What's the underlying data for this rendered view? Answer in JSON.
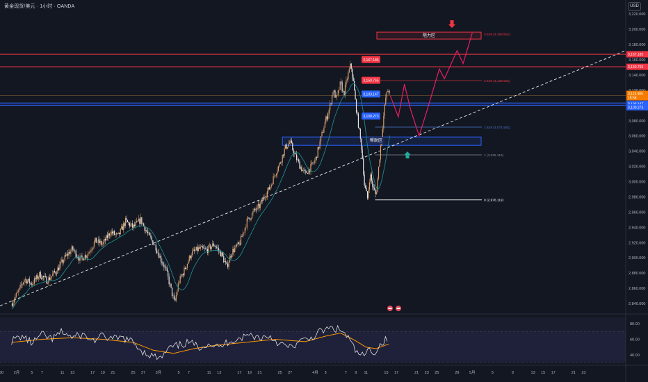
{
  "header": {
    "symbol": "黄金现货/美元",
    "interval": "1小时",
    "source": "OANDA",
    "sep": "·",
    "currency": "USD"
  },
  "colors": {
    "background": "#131722",
    "up": "#d9a06a",
    "down": "#e8e8e8",
    "ma": "#1f8a8a",
    "trend": "#ffffff",
    "resistance": "#f23645",
    "support_zone": "#2962ff",
    "projection": "#e91e63",
    "rsi": "#e0e0e0",
    "rsi_ma": "#ff9800",
    "axis_text": "#b2b5be"
  },
  "chart_data": [
    {
      "type": "candlestick",
      "instrument": "XAU/USD",
      "timeframe": "1h",
      "ylim": [
        2830,
        3222
      ],
      "yticks": [
        2840,
        2860,
        2880,
        2900,
        2920,
        2940,
        2960,
        2980,
        3000,
        3020,
        3040,
        3060,
        3080,
        3100,
        3120,
        3140,
        3160,
        3180,
        3200,
        3220
      ],
      "ytick_labels": [
        "2,840.000",
        "2,860.000",
        "2,880.000",
        "2,900.000",
        "2,920.000",
        "2,940.000",
        "2,960.000",
        "2,980.000",
        "3,000.000",
        "3,020.000",
        "3,040.000",
        "3,060.000",
        "3,080.000",
        "3,100.000",
        "3,120.000",
        "3,140.000",
        "3,160.000",
        "3,180.000",
        "3,200.000",
        "3,220.000"
      ],
      "xticks": [
        {
          "label": "30",
          "day": -2
        },
        {
          "label": "2月",
          "day": 1
        },
        {
          "label": "5",
          "day": 4
        },
        {
          "label": "7",
          "day": 6
        },
        {
          "label": "11",
          "day": 10
        },
        {
          "label": "13",
          "day": 12
        },
        {
          "label": "17",
          "day": 16
        },
        {
          "label": "19",
          "day": 18
        },
        {
          "label": "21",
          "day": 20
        },
        {
          "label": "25",
          "day": 24
        },
        {
          "label": "27",
          "day": 26
        },
        {
          "label": "3月",
          "day": 29
        },
        {
          "label": "5",
          "day": 33
        },
        {
          "label": "7",
          "day": 35
        },
        {
          "label": "11",
          "day": 39
        },
        {
          "label": "13",
          "day": 41
        },
        {
          "label": "17",
          "day": 45
        },
        {
          "label": "19",
          "day": 47
        },
        {
          "label": "21",
          "day": 49
        },
        {
          "label": "25",
          "day": 53
        },
        {
          "label": "27",
          "day": 55
        },
        {
          "label": "4月",
          "day": 60
        },
        {
          "label": "3",
          "day": 62
        },
        {
          "label": "7",
          "day": 66
        },
        {
          "label": "9",
          "day": 68
        },
        {
          "label": "11",
          "day": 70
        },
        {
          "label": "15",
          "day": 74
        },
        {
          "label": "17",
          "day": 76
        },
        {
          "label": "21",
          "day": 80
        },
        {
          "label": "23",
          "day": 82
        },
        {
          "label": "25",
          "day": 84
        },
        {
          "label": "29",
          "day": 88
        },
        {
          "label": "5月",
          "day": 91
        },
        {
          "label": "5",
          "day": 95
        },
        {
          "label": "9",
          "day": 99
        },
        {
          "label": "13",
          "day": 103
        },
        {
          "label": "15",
          "day": 105
        },
        {
          "label": "17",
          "day": 107
        },
        {
          "label": "21",
          "day": 111
        },
        {
          "label": "23",
          "day": 113
        }
      ],
      "price_path": [
        [
          0,
          2840
        ],
        [
          1.5,
          2858
        ],
        [
          2.5,
          2872
        ],
        [
          4,
          2866
        ],
        [
          5.5,
          2878
        ],
        [
          7,
          2870
        ],
        [
          9,
          2884
        ],
        [
          10.5,
          2900
        ],
        [
          12,
          2912
        ],
        [
          13.5,
          2898
        ],
        [
          15,
          2905
        ],
        [
          16.5,
          2922
        ],
        [
          18,
          2918
        ],
        [
          19.5,
          2934
        ],
        [
          21,
          2928
        ],
        [
          22.5,
          2948
        ],
        [
          24,
          2940
        ],
        [
          25.5,
          2950
        ],
        [
          27,
          2930
        ],
        [
          28.5,
          2914
        ],
        [
          29.5,
          2898
        ],
        [
          30.5,
          2884
        ],
        [
          31.5,
          2858
        ],
        [
          32.2,
          2840
        ],
        [
          33,
          2868
        ],
        [
          34,
          2882
        ],
        [
          35.5,
          2906
        ],
        [
          37,
          2912
        ],
        [
          38.5,
          2910
        ],
        [
          40,
          2918
        ],
        [
          41.5,
          2904
        ],
        [
          42.5,
          2888
        ],
        [
          43.5,
          2908
        ],
        [
          45,
          2918
        ],
        [
          46.5,
          2948
        ],
        [
          48,
          2962
        ],
        [
          49,
          2968
        ],
        [
          50,
          2982
        ],
        [
          51,
          2992
        ],
        [
          52,
          3010
        ],
        [
          53,
          3024
        ],
        [
          54,
          3044
        ],
        [
          55,
          3052
        ],
        [
          56,
          3034
        ],
        [
          57,
          3020
        ],
        [
          58,
          3010
        ],
        [
          59,
          3018
        ],
        [
          60,
          3028
        ],
        [
          61,
          3054
        ],
        [
          62,
          3080
        ],
        [
          62.8,
          3096
        ],
        [
          63.5,
          3120
        ],
        [
          64.2,
          3108
        ],
        [
          65,
          3130
        ],
        [
          65.6,
          3114
        ],
        [
          66.3,
          3136
        ],
        [
          67,
          3154
        ],
        [
          67.5,
          3130
        ],
        [
          68,
          3100
        ],
        [
          68.6,
          3070
        ],
        [
          69.2,
          3040
        ],
        [
          69.7,
          2996
        ],
        [
          70.3,
          2978
        ],
        [
          70.8,
          3010
        ],
        [
          71.4,
          2992
        ],
        [
          72,
          2982
        ],
        [
          72.8,
          3040
        ],
        [
          73.4,
          3080
        ],
        [
          73.9,
          3110
        ],
        [
          74.4,
          3122
        ],
        [
          74.8,
          3113
        ]
      ],
      "rsi": {
        "ylim": [
          32,
          88
        ],
        "yticks": [
          40,
          60,
          80
        ],
        "ytick_labels": [
          "40.00",
          "60.00",
          "80.00"
        ],
        "guides": [
          70,
          30
        ],
        "path": [
          [
            0,
            58
          ],
          [
            2,
            64
          ],
          [
            4,
            55
          ],
          [
            6,
            66
          ],
          [
            8,
            60
          ],
          [
            10,
            70
          ],
          [
            12,
            62
          ],
          [
            14,
            66
          ],
          [
            16,
            58
          ],
          [
            18,
            64
          ],
          [
            20,
            60
          ],
          [
            22,
            62
          ],
          [
            24,
            56
          ],
          [
            26,
            44
          ],
          [
            28,
            38
          ],
          [
            29.5,
            35
          ],
          [
            31,
            48
          ],
          [
            33,
            52
          ],
          [
            35,
            56
          ],
          [
            37,
            50
          ],
          [
            39,
            55
          ],
          [
            41,
            49
          ],
          [
            43,
            58
          ],
          [
            45,
            61
          ],
          [
            47,
            66
          ],
          [
            49,
            62
          ],
          [
            51,
            64
          ],
          [
            53,
            54
          ],
          [
            55,
            49
          ],
          [
            57,
            57
          ],
          [
            59,
            61
          ],
          [
            61,
            70
          ],
          [
            63,
            74
          ],
          [
            65,
            72
          ],
          [
            66.5,
            62
          ],
          [
            68,
            44
          ],
          [
            69.5,
            38
          ],
          [
            70.5,
            46
          ],
          [
            72,
            44
          ],
          [
            73,
            55
          ],
          [
            74.5,
            62
          ]
        ],
        "ma_path": [
          [
            0,
            56
          ],
          [
            6,
            60
          ],
          [
            12,
            62
          ],
          [
            18,
            60
          ],
          [
            24,
            56
          ],
          [
            28,
            46
          ],
          [
            32,
            42
          ],
          [
            36,
            48
          ],
          [
            40,
            52
          ],
          [
            46,
            56
          ],
          [
            52,
            60
          ],
          [
            58,
            57
          ],
          [
            62,
            64
          ],
          [
            65,
            68
          ],
          [
            68,
            58
          ],
          [
            70,
            50
          ],
          [
            72,
            48
          ],
          [
            74.5,
            54
          ]
        ]
      },
      "levels": {
        "res_top": 3167.185,
        "res_2": 3150.765,
        "blue_a": 3103.147,
        "blue_b": 3100.273,
        "support_zone": [
          3048,
          3055
        ],
        "fib_top": 3193.581,
        "fib_2618": 3132.581,
        "fib_1618": 3071.581,
        "fib_1": 3035.119,
        "fib_0": 2976.119
      },
      "labels": {
        "res_top": "3,167.185",
        "res_2": "3,150.765",
        "blue_a": "3,103.147",
        "blue_b": "3,100.273",
        "current": "3,113.405",
        "countdown": "15:58",
        "axis_res_top": "3,167.185",
        "axis_res_2": "3,150.765",
        "axis_blue_a": "3,103.147",
        "axis_blue_b": "3,100.273",
        "zone_resist": "阻力区",
        "zone_support": "帮助区",
        "fib_top": "3.618 (3,193.581)",
        "fib_2618": "2.618 (3,132.581)",
        "fib_1618": "1.618 (3,071.581)",
        "fib_1": "1 (3,035.119)",
        "fib_0": "0 (2,976.119)"
      },
      "projection": [
        [
          74.8,
          3113
        ],
        [
          76.4,
          3085
        ],
        [
          77.6,
          3128
        ],
        [
          78.8,
          3095
        ],
        [
          80.5,
          3060
        ],
        [
          82,
          3092
        ],
        [
          84.5,
          3148
        ],
        [
          85.5,
          3135
        ],
        [
          88,
          3172
        ],
        [
          89.2,
          3155
        ],
        [
          91,
          3195
        ]
      ]
    }
  ]
}
